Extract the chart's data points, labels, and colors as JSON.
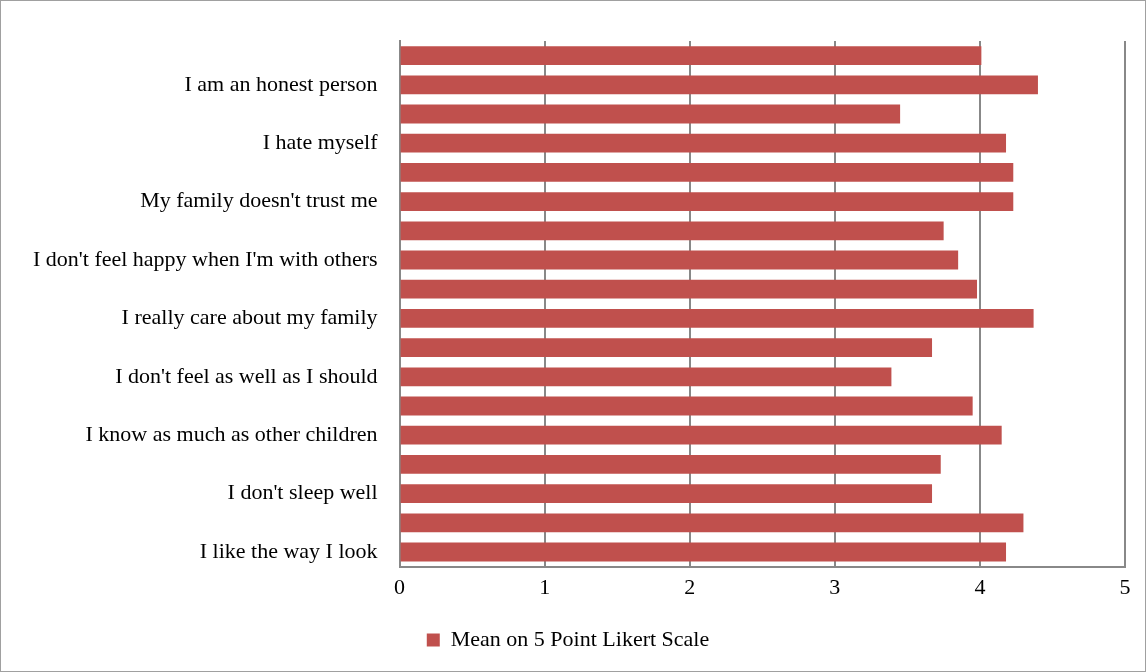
{
  "chart_data": {
    "type": "bar",
    "orientation": "horizontal",
    "categories": [
      null,
      "I am an honest person",
      null,
      "I hate myself",
      null,
      "My family doesn't trust me",
      null,
      "I don't feel happy when I'm with others",
      null,
      "I really care about my family",
      null,
      "I don't feel as well as I should",
      null,
      "I know as much as other children",
      null,
      "I don't sleep well",
      null,
      "I like the way I look"
    ],
    "series": [
      {
        "name": "Mean on 5 Point Likert Scale",
        "color": "#c0504d",
        "values": [
          4.01,
          4.4,
          3.45,
          4.18,
          4.23,
          4.23,
          3.75,
          3.85,
          3.98,
          4.37,
          3.67,
          3.39,
          3.95,
          4.15,
          3.73,
          3.67,
          4.3,
          4.18
        ]
      }
    ],
    "xlim": [
      0,
      5
    ],
    "xticks": [
      0,
      1,
      2,
      3,
      4,
      5
    ],
    "grid": "x",
    "legend": "bottom"
  }
}
